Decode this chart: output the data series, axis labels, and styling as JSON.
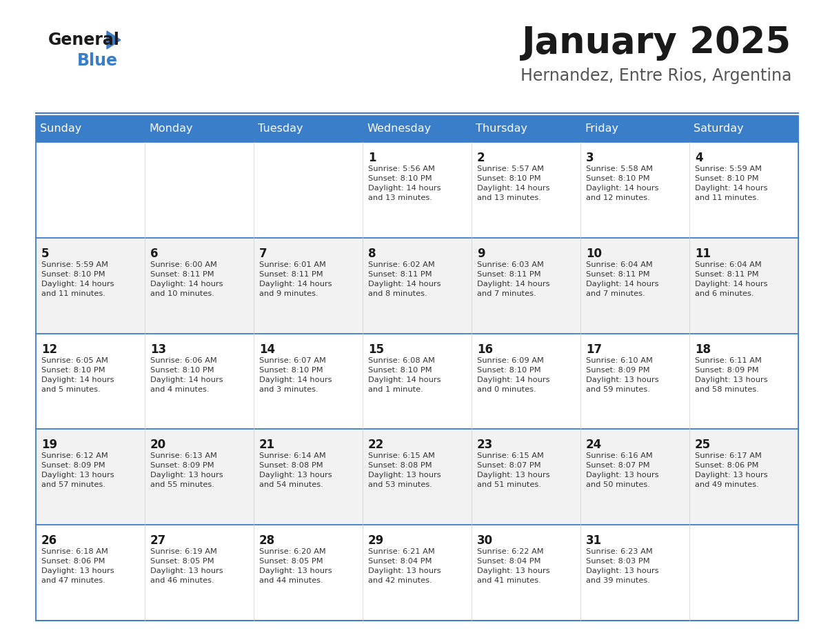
{
  "title": "January 2025",
  "subtitle": "Hernandez, Entre Rios, Argentina",
  "days_of_week": [
    "Sunday",
    "Monday",
    "Tuesday",
    "Wednesday",
    "Thursday",
    "Friday",
    "Saturday"
  ],
  "header_bg": "#3A7DC9",
  "header_text": "#FFFFFF",
  "row_bg_odd": "#F2F2F2",
  "row_bg_even": "#FFFFFF",
  "day_number_color": "#1A1A1A",
  "cell_text_color": "#333333",
  "border_color": "#3A7DC9",
  "title_color": "#1A1A1A",
  "subtitle_color": "#555555",
  "calendar": [
    [
      {
        "day": "",
        "info": ""
      },
      {
        "day": "",
        "info": ""
      },
      {
        "day": "",
        "info": ""
      },
      {
        "day": "1",
        "info": "Sunrise: 5:56 AM\nSunset: 8:10 PM\nDaylight: 14 hours\nand 13 minutes."
      },
      {
        "day": "2",
        "info": "Sunrise: 5:57 AM\nSunset: 8:10 PM\nDaylight: 14 hours\nand 13 minutes."
      },
      {
        "day": "3",
        "info": "Sunrise: 5:58 AM\nSunset: 8:10 PM\nDaylight: 14 hours\nand 12 minutes."
      },
      {
        "day": "4",
        "info": "Sunrise: 5:59 AM\nSunset: 8:10 PM\nDaylight: 14 hours\nand 11 minutes."
      }
    ],
    [
      {
        "day": "5",
        "info": "Sunrise: 5:59 AM\nSunset: 8:10 PM\nDaylight: 14 hours\nand 11 minutes."
      },
      {
        "day": "6",
        "info": "Sunrise: 6:00 AM\nSunset: 8:11 PM\nDaylight: 14 hours\nand 10 minutes."
      },
      {
        "day": "7",
        "info": "Sunrise: 6:01 AM\nSunset: 8:11 PM\nDaylight: 14 hours\nand 9 minutes."
      },
      {
        "day": "8",
        "info": "Sunrise: 6:02 AM\nSunset: 8:11 PM\nDaylight: 14 hours\nand 8 minutes."
      },
      {
        "day": "9",
        "info": "Sunrise: 6:03 AM\nSunset: 8:11 PM\nDaylight: 14 hours\nand 7 minutes."
      },
      {
        "day": "10",
        "info": "Sunrise: 6:04 AM\nSunset: 8:11 PM\nDaylight: 14 hours\nand 7 minutes."
      },
      {
        "day": "11",
        "info": "Sunrise: 6:04 AM\nSunset: 8:11 PM\nDaylight: 14 hours\nand 6 minutes."
      }
    ],
    [
      {
        "day": "12",
        "info": "Sunrise: 6:05 AM\nSunset: 8:10 PM\nDaylight: 14 hours\nand 5 minutes."
      },
      {
        "day": "13",
        "info": "Sunrise: 6:06 AM\nSunset: 8:10 PM\nDaylight: 14 hours\nand 4 minutes."
      },
      {
        "day": "14",
        "info": "Sunrise: 6:07 AM\nSunset: 8:10 PM\nDaylight: 14 hours\nand 3 minutes."
      },
      {
        "day": "15",
        "info": "Sunrise: 6:08 AM\nSunset: 8:10 PM\nDaylight: 14 hours\nand 1 minute."
      },
      {
        "day": "16",
        "info": "Sunrise: 6:09 AM\nSunset: 8:10 PM\nDaylight: 14 hours\nand 0 minutes."
      },
      {
        "day": "17",
        "info": "Sunrise: 6:10 AM\nSunset: 8:09 PM\nDaylight: 13 hours\nand 59 minutes."
      },
      {
        "day": "18",
        "info": "Sunrise: 6:11 AM\nSunset: 8:09 PM\nDaylight: 13 hours\nand 58 minutes."
      }
    ],
    [
      {
        "day": "19",
        "info": "Sunrise: 6:12 AM\nSunset: 8:09 PM\nDaylight: 13 hours\nand 57 minutes."
      },
      {
        "day": "20",
        "info": "Sunrise: 6:13 AM\nSunset: 8:09 PM\nDaylight: 13 hours\nand 55 minutes."
      },
      {
        "day": "21",
        "info": "Sunrise: 6:14 AM\nSunset: 8:08 PM\nDaylight: 13 hours\nand 54 minutes."
      },
      {
        "day": "22",
        "info": "Sunrise: 6:15 AM\nSunset: 8:08 PM\nDaylight: 13 hours\nand 53 minutes."
      },
      {
        "day": "23",
        "info": "Sunrise: 6:15 AM\nSunset: 8:07 PM\nDaylight: 13 hours\nand 51 minutes."
      },
      {
        "day": "24",
        "info": "Sunrise: 6:16 AM\nSunset: 8:07 PM\nDaylight: 13 hours\nand 50 minutes."
      },
      {
        "day": "25",
        "info": "Sunrise: 6:17 AM\nSunset: 8:06 PM\nDaylight: 13 hours\nand 49 minutes."
      }
    ],
    [
      {
        "day": "26",
        "info": "Sunrise: 6:18 AM\nSunset: 8:06 PM\nDaylight: 13 hours\nand 47 minutes."
      },
      {
        "day": "27",
        "info": "Sunrise: 6:19 AM\nSunset: 8:05 PM\nDaylight: 13 hours\nand 46 minutes."
      },
      {
        "day": "28",
        "info": "Sunrise: 6:20 AM\nSunset: 8:05 PM\nDaylight: 13 hours\nand 44 minutes."
      },
      {
        "day": "29",
        "info": "Sunrise: 6:21 AM\nSunset: 8:04 PM\nDaylight: 13 hours\nand 42 minutes."
      },
      {
        "day": "30",
        "info": "Sunrise: 6:22 AM\nSunset: 8:04 PM\nDaylight: 13 hours\nand 41 minutes."
      },
      {
        "day": "31",
        "info": "Sunrise: 6:23 AM\nSunset: 8:03 PM\nDaylight: 13 hours\nand 39 minutes."
      },
      {
        "day": "",
        "info": ""
      }
    ]
  ],
  "logo_general_color": "#1A1A1A",
  "logo_blue_color": "#3A7DC9",
  "logo_triangle_color": "#3A7DC9"
}
